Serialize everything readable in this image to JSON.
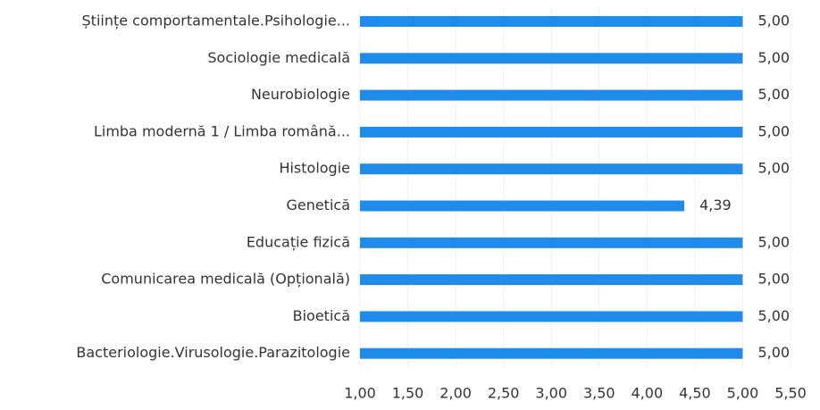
{
  "chart_data": {
    "type": "bar",
    "orientation": "horizontal",
    "categories": [
      "Științe comportamentale.Psihologie...",
      "Sociologie medicală",
      "Neurobiologie",
      "Limba modernă 1 / Limba română...",
      "Histologie",
      "Genetică",
      "Educație fizică",
      "Comunicarea medicală (Opțională)",
      "Bioetică",
      "Bacteriologie.Virusologie.Parazitologie"
    ],
    "values": [
      5.0,
      5.0,
      5.0,
      5.0,
      5.0,
      4.39,
      5.0,
      5.0,
      5.0,
      5.0
    ],
    "value_labels": [
      "5,00",
      "5,00",
      "5,00",
      "5,00",
      "5,00",
      "4,39",
      "5,00",
      "5,00",
      "5,00",
      "5,00"
    ],
    "color": "#1f8ceb",
    "xlim": [
      1,
      5.5
    ],
    "xticks": [
      {
        "value": 1,
        "label": "1,00"
      },
      {
        "value": 1.5,
        "label": "1,50"
      },
      {
        "value": 2,
        "label": "2,00"
      },
      {
        "value": 2.5,
        "label": "2,50"
      },
      {
        "value": 3,
        "label": "3,00"
      },
      {
        "value": 3.5,
        "label": "3,50"
      },
      {
        "value": 4,
        "label": "4,00"
      },
      {
        "value": 4.5,
        "label": "4,50"
      },
      {
        "value": 5,
        "label": "5,00"
      },
      {
        "value": 5.5,
        "label": "5,50"
      }
    ],
    "grid": true
  }
}
